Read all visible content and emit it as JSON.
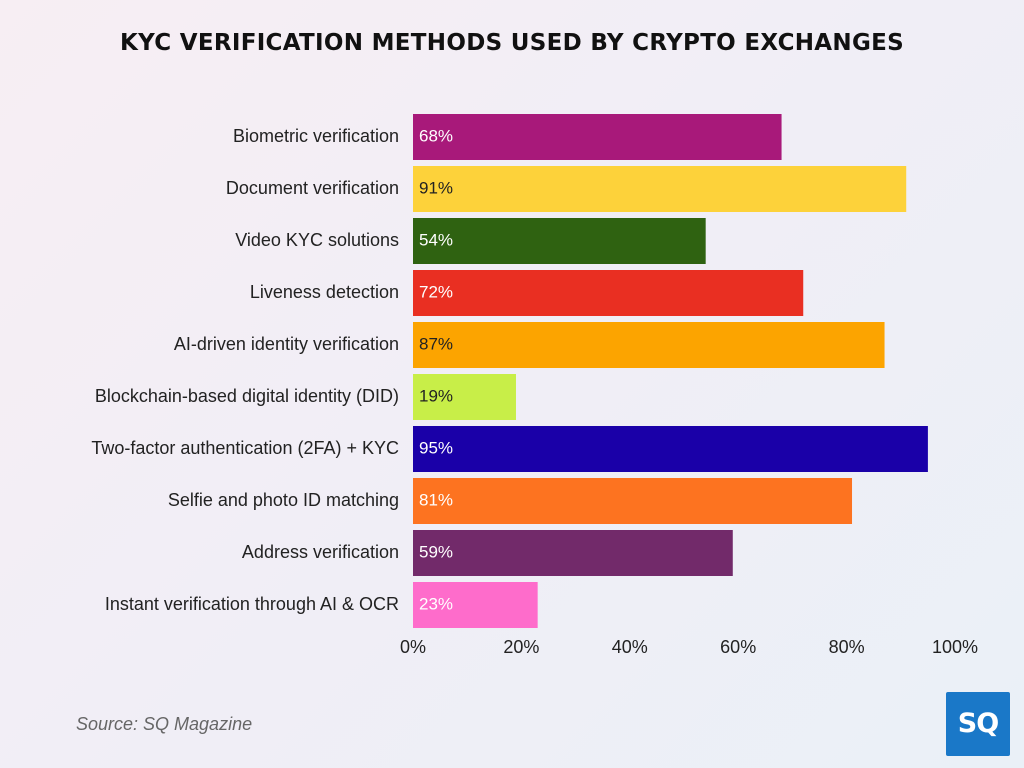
{
  "chart_data": {
    "type": "bar",
    "orientation": "horizontal",
    "title": "KYC VERIFICATION METHODS USED BY CRYPTO EXCHANGES",
    "categories": [
      "Biometric verification",
      "Document verification",
      "Video KYC solutions",
      "Liveness detection",
      "AI-driven identity verification",
      "Blockchain-based digital identity (DID)",
      "Two-factor authentication (2FA) + KYC",
      "Selfie and photo ID matching",
      "Address verification",
      "Instant verification through AI & OCR"
    ],
    "values": [
      68,
      91,
      54,
      72,
      87,
      19,
      95,
      81,
      59,
      23
    ],
    "value_labels": [
      "68%",
      "91%",
      "54%",
      "72%",
      "87%",
      "19%",
      "95%",
      "81%",
      "59%",
      "23%"
    ],
    "colors": [
      "#a8197a",
      "#fdd23a",
      "#2f6211",
      "#e92f22",
      "#fca400",
      "#c8ee48",
      "#1a00a8",
      "#fd7320",
      "#722a6a",
      "#fe6ccb"
    ],
    "label_colors": [
      "#ffffff",
      "#222222",
      "#ffffff",
      "#ffffff",
      "#222222",
      "#222222",
      "#ffffff",
      "#ffffff",
      "#ffffff",
      "#ffffff"
    ],
    "xlim": [
      0,
      100
    ],
    "x_ticks": [
      "0%",
      "20%",
      "40%",
      "60%",
      "80%",
      "100%"
    ],
    "grid": false,
    "legend": "none"
  },
  "source": "Source: SQ Magazine",
  "logo": {
    "text": "SQ",
    "color": "#1a78c8"
  }
}
